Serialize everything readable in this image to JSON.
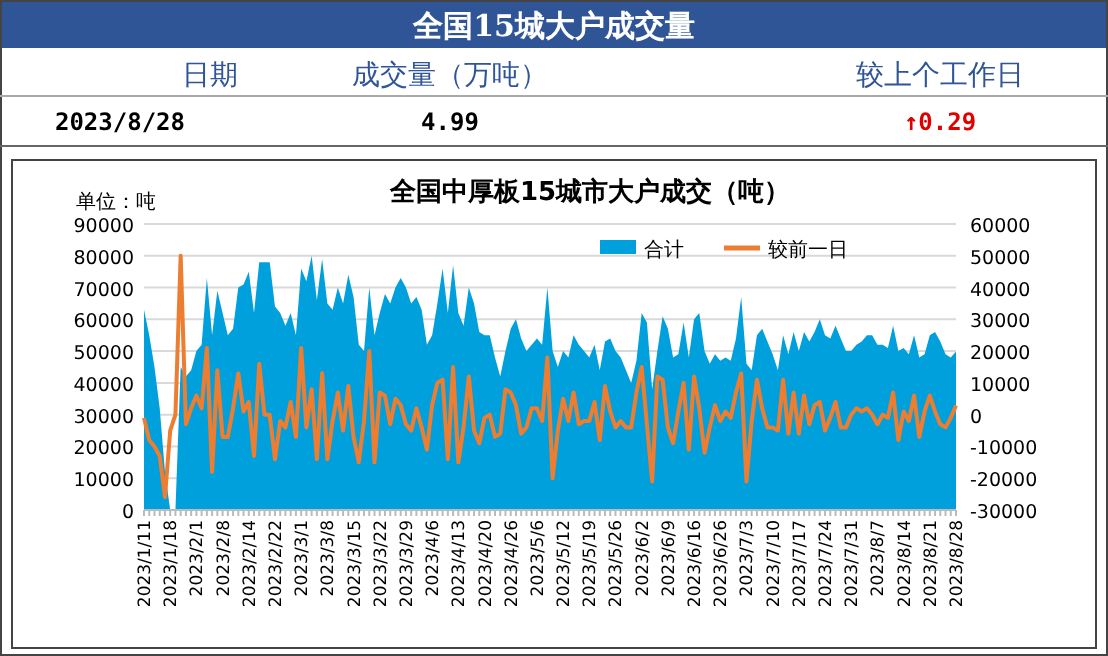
{
  "chart_data": {
    "type": "area",
    "title": "全国中厚板15城市大户成交（吨）",
    "annotations": [
      "全国15城大户成交量",
      "日期",
      "成交量（万吨）",
      "较上个工作日",
      "2023/8/28",
      "4.99",
      "↑0.29",
      "单位：吨"
    ],
    "categories": [
      "2023/1/11",
      null,
      null,
      null,
      null,
      "2023/1/18",
      null,
      null,
      null,
      null,
      "2023/2/1",
      null,
      null,
      null,
      null,
      "2023/2/8",
      null,
      null,
      null,
      null,
      "2023/2/14",
      null,
      null,
      null,
      null,
      "2023/2/22",
      null,
      null,
      null,
      null,
      "2023/3/1",
      null,
      null,
      null,
      null,
      "2023/3/8",
      null,
      null,
      null,
      null,
      "2023/3/15",
      null,
      null,
      null,
      null,
      "2023/3/22",
      null,
      null,
      null,
      null,
      "2023/3/29",
      null,
      null,
      null,
      null,
      "2023/4/6",
      null,
      null,
      null,
      null,
      "2023/4/13",
      null,
      null,
      null,
      null,
      "2023/4/20",
      null,
      null,
      null,
      null,
      "2023/4/26",
      null,
      null,
      null,
      null,
      "2023/5/6",
      null,
      null,
      null,
      null,
      "2023/5/12",
      null,
      null,
      null,
      null,
      "2023/5/19",
      null,
      null,
      null,
      null,
      "2023/5/26",
      null,
      null,
      null,
      null,
      "2023/6/2",
      null,
      null,
      null,
      null,
      "2023/6/9",
      null,
      null,
      null,
      null,
      "2023/6/16",
      null,
      null,
      null,
      null,
      "2023/6/26",
      null,
      null,
      null,
      null,
      "2023/7/3",
      null,
      null,
      null,
      null,
      "2023/7/10",
      null,
      null,
      null,
      null,
      "2023/7/17",
      null,
      null,
      null,
      null,
      "2023/7/24",
      null,
      null,
      null,
      null,
      "2023/7/31",
      null,
      null,
      null,
      null,
      "2023/8/7",
      null,
      null,
      null,
      null,
      "2023/8/14",
      null,
      null,
      null,
      null,
      "2023/8/21",
      null,
      null,
      null,
      null,
      "2023/8/28"
    ],
    "series": [
      {
        "name": "合计",
        "color": "#00a0dc",
        "values": [
          63000,
          55000,
          45000,
          32000,
          12000,
          0,
          0,
          45000,
          42000,
          44000,
          50000,
          52000,
          73000,
          55000,
          69000,
          62000,
          55000,
          57000,
          70000,
          71000,
          75000,
          62000,
          78000,
          78000,
          78000,
          64000,
          62000,
          58000,
          62000,
          55000,
          76000,
          72000,
          80000,
          66000,
          79000,
          65000,
          63000,
          70000,
          65000,
          74000,
          67000,
          52000,
          50000,
          70000,
          55000,
          62000,
          68000,
          65000,
          70000,
          73000,
          70000,
          65000,
          67000,
          63000,
          52000,
          55000,
          65000,
          76000,
          62000,
          77000,
          62000,
          58000,
          70000,
          65000,
          56000,
          55000,
          55000,
          48000,
          42000,
          50000,
          57000,
          60000,
          54000,
          50000,
          52000,
          54000,
          52000,
          70000,
          50000,
          45000,
          50000,
          48000,
          55000,
          52000,
          50000,
          48000,
          52000,
          44000,
          53000,
          54000,
          50000,
          48000,
          44000,
          40000,
          47000,
          62000,
          59000,
          38000,
          50000,
          61000,
          57000,
          48000,
          49000,
          59000,
          48000,
          60000,
          62000,
          50000,
          46000,
          49000,
          47000,
          48000,
          47000,
          54000,
          67000,
          46000,
          44000,
          55000,
          57000,
          53000,
          49000,
          44000,
          55000,
          49000,
          56000,
          50000,
          56000,
          53000,
          56000,
          60000,
          55000,
          54000,
          58000,
          54000,
          50000,
          50000,
          52000,
          53000,
          55000,
          55000,
          52000,
          52000,
          51000,
          58000,
          50000,
          51000,
          49000,
          55000,
          48000,
          49000,
          55000,
          56000,
          53000,
          49000,
          48000,
          49900
        ]
      },
      {
        "name": "较前一日",
        "type": "line",
        "axis": "y2",
        "color": "#ed7d31",
        "values": [
          -1000,
          -8000,
          -10000,
          -13000,
          -26000,
          -5000,
          0,
          50000,
          -3000,
          2000,
          6000,
          2000,
          21000,
          -18000,
          14000,
          -7000,
          -7000,
          2000,
          13000,
          1000,
          4000,
          -13000,
          16000,
          0,
          0,
          -14000,
          -2000,
          -4000,
          4000,
          -7000,
          21000,
          -4000,
          8000,
          -14000,
          13000,
          -14000,
          -2000,
          7000,
          -5000,
          9000,
          -7000,
          -15000,
          -2000,
          20000,
          -15000,
          7000,
          6000,
          -3000,
          5000,
          3000,
          -3000,
          -5000,
          2000,
          -4000,
          -11000,
          3000,
          10000,
          11000,
          -14000,
          15000,
          -15000,
          -4000,
          12000,
          -5000,
          -9000,
          -1000,
          0,
          -7000,
          -6000,
          8000,
          7000,
          3000,
          -6000,
          -4000,
          2000,
          2000,
          -2000,
          18000,
          -20000,
          -5000,
          5000,
          -2000,
          7000,
          -3000,
          -2000,
          -2000,
          4000,
          -8000,
          9000,
          1000,
          -4000,
          -2000,
          -4000,
          -4000,
          7000,
          15000,
          -3000,
          -21000,
          12000,
          11000,
          -4000,
          -9000,
          1000,
          10000,
          -11000,
          12000,
          2000,
          -12000,
          -4000,
          3000,
          -2000,
          1000,
          -1000,
          7000,
          13000,
          -21000,
          -2000,
          11000,
          2000,
          -4000,
          -4000,
          -5000,
          11000,
          -6000,
          7000,
          -6000,
          6000,
          -3000,
          3000,
          4000,
          -5000,
          -1000,
          4000,
          -4000,
          -4000,
          0,
          2000,
          1000,
          2000,
          0,
          -3000,
          0,
          -1000,
          7000,
          -8000,
          1000,
          -2000,
          6000,
          -7000,
          1000,
          6000,
          1000,
          -3000,
          -4000,
          -1000,
          2900
        ]
      }
    ],
    "ylim": [
      0,
      90000
    ],
    "yticks": [
      0,
      10000,
      20000,
      30000,
      40000,
      50000,
      60000,
      70000,
      80000,
      90000
    ],
    "y2lim": [
      -30000,
      60000
    ],
    "y2ticks": [
      -30000,
      -20000,
      -10000,
      0,
      10000,
      20000,
      30000,
      40000,
      50000,
      60000
    ],
    "grid": "y",
    "legend": "top right",
    "line_style": "solid",
    "marker": "none"
  }
}
